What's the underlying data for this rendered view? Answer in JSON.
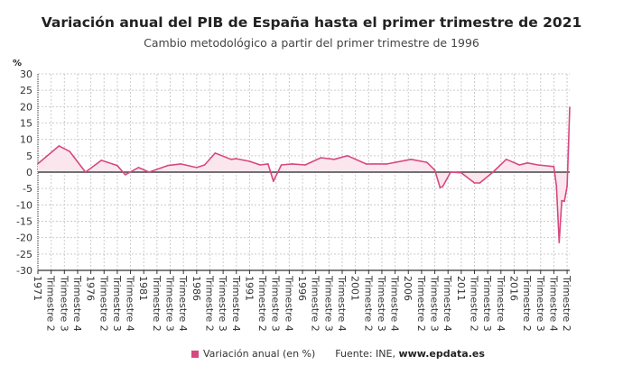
{
  "title": "Variación anual del PIB de España hasta el primer trimestre de 2021",
  "subtitle": "Cambio metodológico a partir del primer trimestre de 1996",
  "legend": {
    "series_label": "Variación anual (en %)",
    "source_prefix": "Fuente: INE, ",
    "source_site": "www.epdata.es"
  },
  "colors": {
    "line": "#d6487e",
    "fill": "#fbe6ee",
    "zero_line": "#444444",
    "grid": "#cccccc"
  },
  "chart_data": {
    "type": "area",
    "title": "Variación anual del PIB de España hasta el primer trimestre de 2021",
    "ylabel": "%",
    "ylim": [
      -30,
      30
    ],
    "yticks": [
      30,
      25,
      20,
      15,
      10,
      5,
      0,
      -5,
      -10,
      -15,
      -20,
      -25,
      -30
    ],
    "grid": true,
    "legend_position": "bottom",
    "xrange": [
      "1971 T1",
      "2021 T2"
    ],
    "xtick_labels": [
      "1971",
      "Trimestre 2",
      "Trimestre 3",
      "Trimestre 4",
      "1976",
      "Trimestre 2",
      "Trimestre 3",
      "Trimestre 4",
      "1981",
      "Trimestre 2",
      "Trimestre 3",
      "Trimestre 4",
      "1986",
      "Trimestre 2",
      "Trimestre 3",
      "Trimestre 4",
      "1991",
      "Trimestre 2",
      "Trimestre 3",
      "Trimestre 4",
      "1996",
      "Trimestre 2",
      "Trimestre 3",
      "Trimestre 4",
      "2001",
      "Trimestre 2",
      "Trimestre 3",
      "Trimestre 4",
      "2006",
      "Trimestre 2",
      "Trimestre 3",
      "Trimestre 4",
      "2011",
      "Trimestre 2",
      "Trimestre 3",
      "Trimestre 4",
      "2016",
      "Trimestre 2",
      "Trimestre 3",
      "Trimestre 4",
      "Trimestre 2"
    ],
    "series": [
      {
        "name": "Variación anual (en %)",
        "points": [
          [
            "1971 T1",
            2.6
          ],
          [
            "1973 T1",
            8.0
          ],
          [
            "1974 T1",
            6.3
          ],
          [
            "1975 T3",
            0.0
          ],
          [
            "1977 T1",
            3.6
          ],
          [
            "1978 T3",
            2.0
          ],
          [
            "1979 T2",
            -0.8
          ],
          [
            "1980 T3",
            1.4
          ],
          [
            "1981 T3",
            0.0
          ],
          [
            "1983 T2",
            2.0
          ],
          [
            "1984 T3",
            2.5
          ],
          [
            "1986 T1",
            1.4
          ],
          [
            "1986 T4",
            2.2
          ],
          [
            "1987 T4",
            5.8
          ],
          [
            "1989 T2",
            3.9
          ],
          [
            "1989 T4",
            4.1
          ],
          [
            "1991 T1",
            3.3
          ],
          [
            "1992 T1",
            2.2
          ],
          [
            "1992 T4",
            2.5
          ],
          [
            "1993 T2",
            -2.8
          ],
          [
            "1994 T1",
            2.2
          ],
          [
            "1995 T1",
            2.5
          ],
          [
            "1996 T2",
            2.2
          ],
          [
            "1997 T4",
            4.4
          ],
          [
            "1999 T1",
            3.9
          ],
          [
            "2000 T2",
            5.0
          ],
          [
            "2002 T1",
            2.5
          ],
          [
            "2004 T1",
            2.5
          ],
          [
            "2006 T2",
            3.9
          ],
          [
            "2007 T4",
            3.0
          ],
          [
            "2008 T3",
            0.6
          ],
          [
            "2009 T1",
            -4.7
          ],
          [
            "2009 T2",
            -4.4
          ],
          [
            "2010 T1",
            0.0
          ],
          [
            "2011 T1",
            -0.2
          ],
          [
            "2012 T2",
            -3.3
          ],
          [
            "2012 T4",
            -3.3
          ],
          [
            "2014 T1",
            0.0
          ],
          [
            "2015 T2",
            3.9
          ],
          [
            "2016 T3",
            2.2
          ],
          [
            "2017 T2",
            2.8
          ],
          [
            "2018 T2",
            2.2
          ],
          [
            "2019 T4",
            1.7
          ],
          [
            "2020 T1",
            -4.3
          ],
          [
            "2020 T2",
            -21.5
          ],
          [
            "2020 T3",
            -8.7
          ],
          [
            "2020 T4",
            -8.9
          ],
          [
            "2021 T1",
            -4.3
          ],
          [
            "2021 T2",
            19.8
          ]
        ]
      }
    ]
  }
}
